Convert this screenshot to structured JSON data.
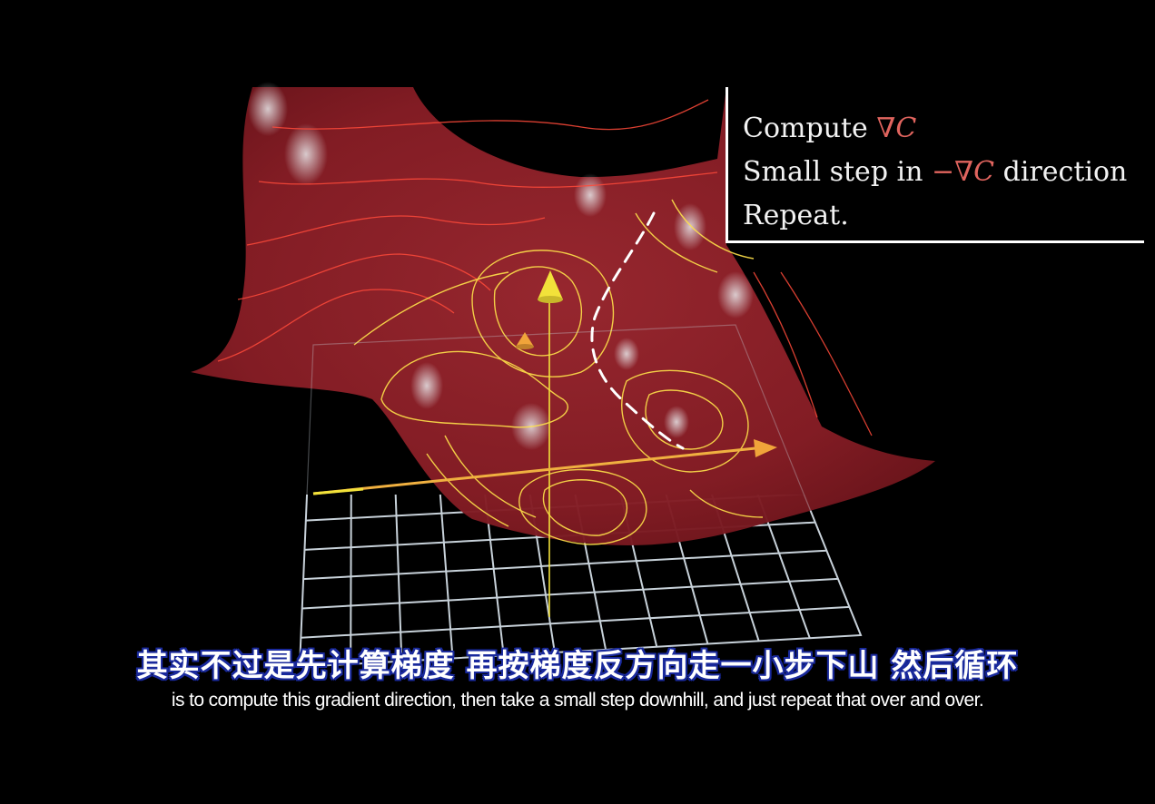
{
  "algorithm": {
    "line1": {
      "word": "Compute",
      "symbol": "∇",
      "var": "C"
    },
    "line2": {
      "before": "Small step in",
      "minus": "−",
      "symbol": "∇",
      "var": "C",
      "after": "direction"
    },
    "line3": {
      "text": "Repeat."
    }
  },
  "subtitles": {
    "chinese": "其实不过是先计算梯度 再按梯度反方向走一小步下山 然后循环",
    "english": "is to compute this gradient direction, then take a small step downhill, and just repeat that over and over."
  },
  "colors": {
    "background": "#000000",
    "surface": "#8c1f26",
    "gradient_symbol": "#e0645e",
    "contour_red": "#ff4a3a",
    "contour_yellow": "#ffe24a",
    "grid": "#c8d2da",
    "arrow_yellow": "#f2e23a",
    "arrow_orange": "#f0a43a",
    "path": "#ffffff",
    "subtitle_outline": "#1a2a9c"
  }
}
